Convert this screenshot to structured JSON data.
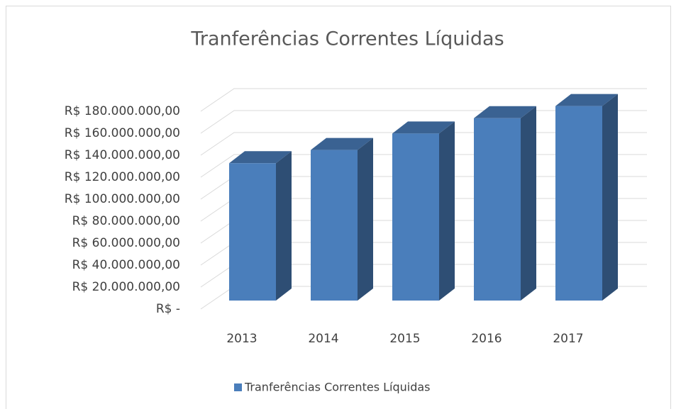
{
  "chart_data": {
    "type": "bar3d",
    "title": "Tranferências Correntes Líquidas",
    "categories": [
      "2013",
      "2014",
      "2015",
      "2016",
      "2017"
    ],
    "series": [
      {
        "name": "Tranferências Correntes Líquidas",
        "color": "#4a7ebb",
        "values": [
          125000000,
          137000000,
          152000000,
          166000000,
          177000000
        ]
      }
    ],
    "ylim": [
      0,
      200000000
    ],
    "yticks": [
      {
        "value": 0,
        "label": "R$ -"
      },
      {
        "value": 20000000,
        "label": "R$ 20.000.000,00"
      },
      {
        "value": 40000000,
        "label": "R$ 40.000.000,00"
      },
      {
        "value": 60000000,
        "label": "R$ 60.000.000,00"
      },
      {
        "value": 80000000,
        "label": "R$ 80.000.000,00"
      },
      {
        "value": 100000000,
        "label": "R$ 100.000.000,00"
      },
      {
        "value": 120000000,
        "label": "R$ 120.000.000,00"
      },
      {
        "value": 140000000,
        "label": "R$ 140.000.000,00"
      },
      {
        "value": 160000000,
        "label": "R$ 160.000.000,00"
      },
      {
        "value": 180000000,
        "label": "R$ 180.000.000,00"
      }
    ],
    "grid": true,
    "legend": "bottom"
  }
}
